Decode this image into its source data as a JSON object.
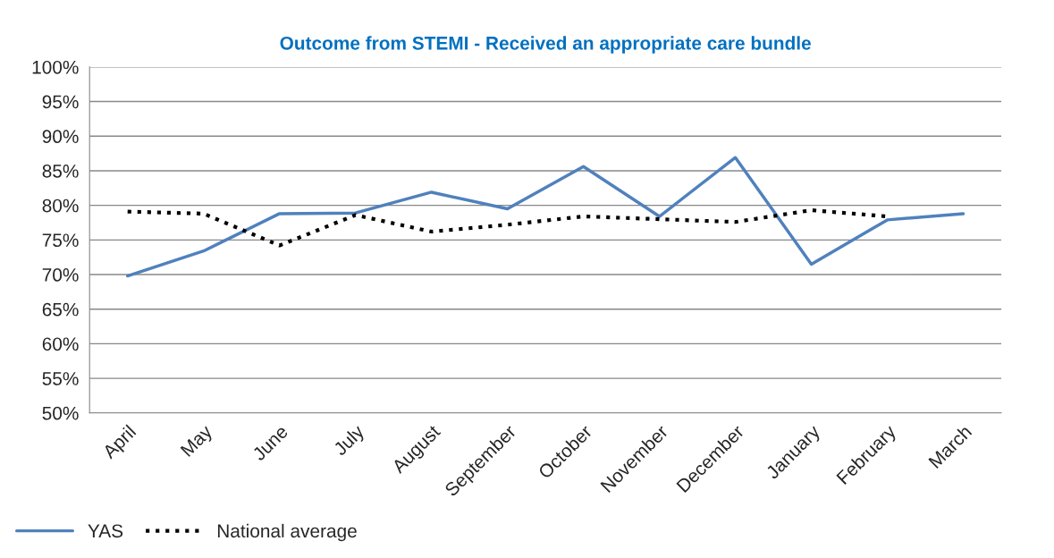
{
  "chart_data": {
    "type": "line",
    "title": "Outcome from STEMI - Received an appropriate care bundle",
    "categories": [
      "April",
      "May",
      "June",
      "July",
      "August",
      "September",
      "October",
      "November",
      "December",
      "January",
      "February",
      "March"
    ],
    "series": [
      {
        "name": "YAS",
        "color": "#4f81bd",
        "line_style": "solid",
        "values": [
          69.8,
          73.4,
          78.8,
          78.9,
          81.9,
          79.5,
          85.6,
          78.4,
          86.9,
          71.5,
          77.9,
          78.8
        ]
      },
      {
        "name": "National average",
        "color": "#000000",
        "line_style": "dotted",
        "values": [
          79.1,
          78.8,
          74.2,
          78.6,
          76.2,
          77.2,
          78.4,
          78.0,
          77.6,
          79.3,
          78.4,
          null
        ]
      }
    ],
    "ylim": [
      50,
      100
    ],
    "yticks": [
      {
        "value": 50,
        "label": "50%"
      },
      {
        "value": 55,
        "label": "55%"
      },
      {
        "value": 60,
        "label": "60%"
      },
      {
        "value": 65,
        "label": "65%"
      },
      {
        "value": 70,
        "label": "70%"
      },
      {
        "value": 75,
        "label": "75%"
      },
      {
        "value": 80,
        "label": "80%"
      },
      {
        "value": 85,
        "label": "85%"
      },
      {
        "value": 90,
        "label": "90%"
      },
      {
        "value": 95,
        "label": "95%"
      },
      {
        "value": 100,
        "label": "100%"
      }
    ],
    "grid": "y",
    "legend": "bottom left",
    "marker": "none"
  }
}
